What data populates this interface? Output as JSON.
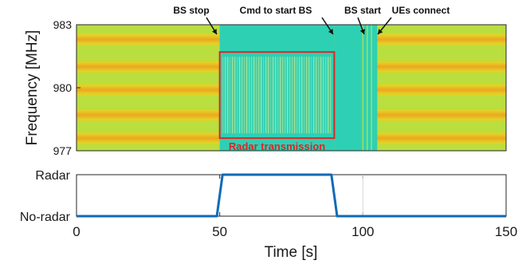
{
  "chart_data": [
    {
      "type": "heatmap",
      "ylabel": "Frequency [MHz]",
      "yticks": [
        983,
        980,
        977
      ],
      "ylim": [
        977,
        983
      ],
      "xlim": [
        0,
        150
      ],
      "colors": {
        "bands_high": "#f0a020",
        "bands_mid": "#e8d020",
        "background": "#b8e040",
        "idle": "#2ed0b4",
        "box": "#e02424",
        "annotation_text": "#e02424"
      },
      "events": [
        {
          "label": "BS stop",
          "time": 50
        },
        {
          "label": "Cmd to start BS",
          "time": 90
        },
        {
          "label": "BS start",
          "time": 100
        },
        {
          "label": "UEs connect",
          "time": 104
        }
      ],
      "idle_intervals": [
        [
          50,
          90
        ],
        [
          90,
          105
        ]
      ],
      "radar_box": {
        "label": "Radar transmission",
        "x": [
          50,
          90
        ],
        "y": [
          977.6,
          981.7
        ]
      },
      "strong_bands_mhz": [
        982.3,
        981.0,
        979.9,
        978.7,
        977.6
      ]
    },
    {
      "type": "line",
      "x": [
        0,
        49,
        51,
        89,
        91,
        150
      ],
      "y": [
        0,
        0,
        1,
        1,
        0,
        0
      ],
      "xticks": [
        0,
        50,
        100,
        150
      ],
      "xlim": [
        0,
        150
      ],
      "yticks": [
        "No-radar",
        "Radar"
      ],
      "xlabel": "Time [s]",
      "line_color": "#0f6ab8",
      "grid": false
    }
  ]
}
